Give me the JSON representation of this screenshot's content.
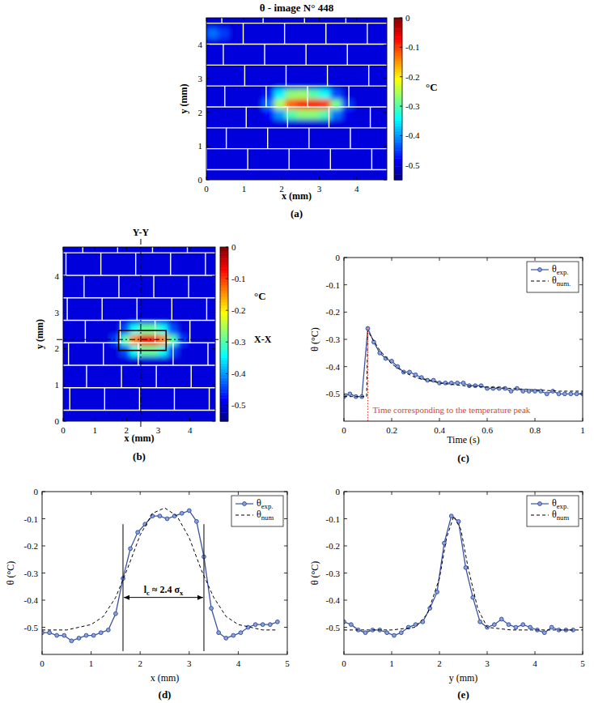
{
  "chart_data": [
    {
      "type": "heatmap",
      "panel": "(a)",
      "title": "θ - image N° 448",
      "x_label": "x (mm)",
      "y_label": "y (mm)",
      "xlim": [
        0,
        4.8
      ],
      "ylim": [
        0,
        4.8
      ],
      "xticks": [
        0,
        1,
        2,
        3,
        4
      ],
      "yticks": [
        0,
        1,
        2,
        3,
        4
      ],
      "cells": [
        [
          -0.5,
          -0.5,
          -0.5,
          -0.5,
          -0.5,
          -0.5,
          -0.5,
          -0.5,
          -0.5,
          -0.5,
          -0.5,
          -0.5,
          -0.5,
          -0.5,
          -0.5,
          -0.5
        ],
        [
          -0.5,
          -0.5,
          -0.5,
          -0.5,
          -0.5,
          -0.5,
          -0.5,
          -0.5,
          -0.5,
          -0.5,
          -0.5,
          -0.5,
          -0.5,
          -0.5,
          -0.5,
          -0.5
        ],
        [
          -0.5,
          -0.5,
          -0.5,
          -0.5,
          -0.5,
          -0.5,
          -0.5,
          -0.5,
          -0.5,
          -0.5,
          -0.5,
          -0.5,
          -0.5,
          -0.5,
          -0.5,
          -0.5
        ],
        [
          -0.5,
          -0.5,
          -0.5,
          -0.5,
          -0.5,
          -0.5,
          -0.5,
          -0.5,
          -0.5,
          -0.5,
          -0.5,
          -0.5,
          -0.5,
          -0.5,
          -0.5,
          -0.5
        ],
        [
          -0.5,
          -0.5,
          -0.5,
          -0.5,
          -0.5,
          -0.5,
          -0.5,
          -0.5,
          -0.5,
          -0.5,
          -0.5,
          -0.5,
          -0.5,
          -0.5,
          -0.5,
          -0.5
        ],
        [
          -0.5,
          -0.5,
          -0.5,
          -0.5,
          -0.5,
          -0.5,
          -0.5,
          -0.5,
          -0.5,
          -0.5,
          -0.5,
          -0.5,
          -0.5,
          -0.5,
          -0.5,
          -0.5
        ],
        [
          -0.5,
          -0.5,
          -0.5,
          -0.5,
          -0.5,
          -0.48,
          -0.4,
          -0.3,
          -0.27,
          -0.27,
          -0.3,
          -0.42,
          -0.49,
          -0.5,
          -0.5,
          -0.5
        ],
        [
          -0.5,
          -0.5,
          -0.5,
          -0.5,
          -0.5,
          -0.42,
          -0.25,
          -0.12,
          -0.08,
          -0.07,
          -0.09,
          -0.28,
          -0.45,
          -0.5,
          -0.5,
          -0.5
        ],
        [
          -0.5,
          -0.5,
          -0.5,
          -0.5,
          -0.5,
          -0.47,
          -0.35,
          -0.27,
          -0.26,
          -0.3,
          -0.34,
          -0.44,
          -0.5,
          -0.5,
          -0.5,
          -0.5
        ],
        [
          -0.5,
          -0.5,
          -0.5,
          -0.5,
          -0.5,
          -0.5,
          -0.5,
          -0.5,
          -0.5,
          -0.5,
          -0.5,
          -0.5,
          -0.5,
          -0.5,
          -0.5,
          -0.5
        ],
        [
          -0.5,
          -0.5,
          -0.5,
          -0.5,
          -0.5,
          -0.5,
          -0.5,
          -0.5,
          -0.5,
          -0.5,
          -0.5,
          -0.5,
          -0.5,
          -0.5,
          -0.5,
          -0.5
        ],
        [
          -0.5,
          -0.5,
          -0.5,
          -0.5,
          -0.5,
          -0.5,
          -0.5,
          -0.5,
          -0.5,
          -0.5,
          -0.5,
          -0.5,
          -0.5,
          -0.5,
          -0.5,
          -0.5
        ],
        [
          -0.5,
          -0.5,
          -0.5,
          -0.5,
          -0.5,
          -0.5,
          -0.5,
          -0.5,
          -0.5,
          -0.5,
          -0.5,
          -0.5,
          -0.5,
          -0.5,
          -0.5,
          -0.5
        ],
        [
          -0.5,
          -0.5,
          -0.5,
          -0.5,
          -0.5,
          -0.5,
          -0.5,
          -0.5,
          -0.5,
          -0.5,
          -0.5,
          -0.5,
          -0.5,
          -0.5,
          -0.5,
          -0.5
        ],
        [
          -0.42,
          -0.45,
          -0.5,
          -0.5,
          -0.5,
          -0.5,
          -0.5,
          -0.5,
          -0.5,
          -0.5,
          -0.5,
          -0.5,
          -0.5,
          -0.5,
          -0.5,
          -0.5
        ],
        [
          -0.5,
          -0.5,
          -0.5,
          -0.5,
          -0.5,
          -0.5,
          -0.5,
          -0.5,
          -0.5,
          -0.5,
          -0.5,
          -0.5,
          -0.5,
          -0.5,
          -0.5,
          -0.5
        ]
      ],
      "colorbar": {
        "range": [
          -0.55,
          0
        ],
        "ticks": [
          0,
          -0.1,
          -0.2,
          -0.3,
          -0.4,
          -0.5
        ],
        "label": "°C"
      }
    },
    {
      "type": "heatmap",
      "panel": "(b)",
      "x_label": "x (mm)",
      "y_label": "y (mm)",
      "xlim": [
        0,
        4.8
      ],
      "ylim": [
        0,
        4.8
      ],
      "xticks": [
        0,
        1,
        2,
        3,
        4
      ],
      "yticks": [
        0,
        1,
        2,
        3,
        4
      ],
      "cells": [
        [
          -0.5,
          -0.5,
          -0.5,
          -0.5,
          -0.5,
          -0.5,
          -0.5,
          -0.5,
          -0.5,
          -0.5,
          -0.5,
          -0.5,
          -0.5,
          -0.5,
          -0.5,
          -0.5
        ],
        [
          -0.5,
          -0.5,
          -0.5,
          -0.5,
          -0.5,
          -0.5,
          -0.5,
          -0.5,
          -0.5,
          -0.5,
          -0.5,
          -0.5,
          -0.5,
          -0.5,
          -0.5,
          -0.5
        ],
        [
          -0.5,
          -0.5,
          -0.5,
          -0.5,
          -0.5,
          -0.5,
          -0.5,
          -0.5,
          -0.5,
          -0.5,
          -0.5,
          -0.5,
          -0.5,
          -0.5,
          -0.5,
          -0.5
        ],
        [
          -0.5,
          -0.5,
          -0.5,
          -0.5,
          -0.5,
          -0.5,
          -0.5,
          -0.5,
          -0.5,
          -0.5,
          -0.5,
          -0.5,
          -0.5,
          -0.5,
          -0.5,
          -0.5
        ],
        [
          -0.5,
          -0.5,
          -0.5,
          -0.5,
          -0.5,
          -0.5,
          -0.5,
          -0.5,
          -0.5,
          -0.5,
          -0.5,
          -0.5,
          -0.5,
          -0.5,
          -0.5,
          -0.5
        ],
        [
          -0.5,
          -0.5,
          -0.5,
          -0.5,
          -0.5,
          -0.5,
          -0.5,
          -0.5,
          -0.5,
          -0.5,
          -0.5,
          -0.5,
          -0.5,
          -0.5,
          -0.5,
          -0.5
        ],
        [
          -0.5,
          -0.5,
          -0.5,
          -0.5,
          -0.5,
          -0.5,
          -0.44,
          -0.34,
          -0.29,
          -0.29,
          -0.34,
          -0.44,
          -0.5,
          -0.5,
          -0.5,
          -0.5
        ],
        [
          -0.5,
          -0.5,
          -0.5,
          -0.5,
          -0.5,
          -0.45,
          -0.3,
          -0.14,
          -0.06,
          -0.06,
          -0.14,
          -0.3,
          -0.45,
          -0.5,
          -0.5,
          -0.5
        ],
        [
          -0.5,
          -0.5,
          -0.5,
          -0.5,
          -0.5,
          -0.5,
          -0.44,
          -0.34,
          -0.29,
          -0.29,
          -0.34,
          -0.44,
          -0.5,
          -0.5,
          -0.5,
          -0.5
        ],
        [
          -0.5,
          -0.5,
          -0.5,
          -0.5,
          -0.5,
          -0.5,
          -0.5,
          -0.5,
          -0.5,
          -0.5,
          -0.5,
          -0.5,
          -0.5,
          -0.5,
          -0.5,
          -0.5
        ],
        [
          -0.5,
          -0.5,
          -0.5,
          -0.5,
          -0.5,
          -0.5,
          -0.5,
          -0.5,
          -0.5,
          -0.5,
          -0.5,
          -0.5,
          -0.5,
          -0.5,
          -0.5,
          -0.5
        ],
        [
          -0.5,
          -0.5,
          -0.5,
          -0.5,
          -0.5,
          -0.5,
          -0.5,
          -0.5,
          -0.5,
          -0.5,
          -0.5,
          -0.5,
          -0.5,
          -0.5,
          -0.5,
          -0.5
        ],
        [
          -0.5,
          -0.5,
          -0.5,
          -0.5,
          -0.5,
          -0.5,
          -0.5,
          -0.5,
          -0.5,
          -0.5,
          -0.5,
          -0.5,
          -0.5,
          -0.5,
          -0.5,
          -0.5
        ],
        [
          -0.5,
          -0.5,
          -0.5,
          -0.5,
          -0.5,
          -0.5,
          -0.5,
          -0.5,
          -0.5,
          -0.5,
          -0.5,
          -0.5,
          -0.5,
          -0.5,
          -0.5,
          -0.5
        ],
        [
          -0.5,
          -0.5,
          -0.5,
          -0.5,
          -0.5,
          -0.5,
          -0.5,
          -0.5,
          -0.5,
          -0.5,
          -0.5,
          -0.5,
          -0.5,
          -0.5,
          -0.5,
          -0.5
        ],
        [
          -0.5,
          -0.5,
          -0.5,
          -0.5,
          -0.5,
          -0.5,
          -0.5,
          -0.5,
          -0.5,
          -0.5,
          -0.5,
          -0.5,
          -0.5,
          -0.5,
          -0.5,
          -0.5
        ]
      ],
      "colorbar": {
        "range": [
          -0.55,
          0
        ],
        "ticks": [
          0,
          -0.1,
          -0.2,
          -0.3,
          -0.4,
          -0.5
        ],
        "label": "°C"
      },
      "sections": [
        {
          "label": "Y-Y",
          "x": 2.45
        },
        {
          "label": "X-X",
          "y": 2.25
        }
      ],
      "box": {
        "x": [
          1.75,
          3.25
        ],
        "y": [
          1.95,
          2.5
        ]
      }
    },
    {
      "type": "line",
      "panel": "(c)",
      "x_label": "Time (s)",
      "y_label": "θ (°C)",
      "xlim": [
        0,
        1
      ],
      "ylim": [
        -0.6,
        0
      ],
      "xticks": [
        0,
        0.2,
        0.4,
        0.6,
        0.8,
        1
      ],
      "yticks": [
        0,
        -0.1,
        -0.2,
        -0.3,
        -0.4,
        -0.5
      ],
      "legend": "upper right",
      "series": [
        {
          "name": "θexp.",
          "color": "#3a53a4",
          "marker": "circle",
          "line_style": "solid",
          "x": [
            0,
            0.025,
            0.05,
            0.075,
            0.1,
            0.125,
            0.15,
            0.175,
            0.2,
            0.225,
            0.25,
            0.275,
            0.3,
            0.325,
            0.35,
            0.375,
            0.4,
            0.425,
            0.45,
            0.475,
            0.5,
            0.525,
            0.55,
            0.575,
            0.6,
            0.625,
            0.65,
            0.675,
            0.7,
            0.725,
            0.75,
            0.775,
            0.8,
            0.825,
            0.85,
            0.875,
            0.9,
            0.925,
            0.95,
            0.975,
            1
          ],
          "values": [
            -0.51,
            -0.5,
            -0.51,
            -0.51,
            -0.26,
            -0.31,
            -0.35,
            -0.37,
            -0.38,
            -0.4,
            -0.42,
            -0.42,
            -0.43,
            -0.44,
            -0.45,
            -0.45,
            -0.46,
            -0.46,
            -0.46,
            -0.46,
            -0.46,
            -0.47,
            -0.47,
            -0.47,
            -0.48,
            -0.48,
            -0.48,
            -0.48,
            -0.49,
            -0.48,
            -0.49,
            -0.49,
            -0.49,
            -0.49,
            -0.5,
            -0.49,
            -0.5,
            -0.5,
            -0.5,
            -0.5,
            -0.5
          ]
        },
        {
          "name": "θnum.",
          "color": "#000000",
          "marker": "none",
          "line_style": "dashed",
          "x": [
            0,
            0.095,
            0.1,
            0.15,
            0.2,
            0.25,
            0.3,
            0.4,
            0.5,
            0.6,
            0.7,
            0.8,
            0.9,
            1
          ],
          "values": [
            -0.51,
            -0.51,
            -0.27,
            -0.34,
            -0.39,
            -0.42,
            -0.44,
            -0.46,
            -0.47,
            -0.475,
            -0.48,
            -0.485,
            -0.49,
            -0.49
          ]
        }
      ],
      "annotations": [
        {
          "text": "Time corresponding to the temperature peak",
          "x": 0.1,
          "color": "#e8412c"
        }
      ]
    },
    {
      "type": "line",
      "panel": "(d)",
      "x_label": "x (mm)",
      "y_label": "θ (°C)",
      "xlim": [
        0,
        5
      ],
      "ylim": [
        -0.6,
        0
      ],
      "xticks": [
        0,
        1,
        2,
        3,
        4,
        5
      ],
      "yticks": [
        0,
        -0.1,
        -0.2,
        -0.3,
        -0.4,
        -0.5
      ],
      "legend": "upper right",
      "series": [
        {
          "name": "θexp.",
          "color": "#3a53a4",
          "marker": "circle",
          "line_style": "solid",
          "x": [
            0,
            0.15,
            0.3,
            0.45,
            0.6,
            0.75,
            0.9,
            1.05,
            1.2,
            1.35,
            1.5,
            1.65,
            1.8,
            1.95,
            2.1,
            2.25,
            2.4,
            2.55,
            2.7,
            2.85,
            3,
            3.15,
            3.3,
            3.45,
            3.6,
            3.75,
            3.9,
            4.05,
            4.2,
            4.35,
            4.5,
            4.65,
            4.8
          ],
          "values": [
            -0.52,
            -0.52,
            -0.53,
            -0.53,
            -0.55,
            -0.54,
            -0.53,
            -0.53,
            -0.52,
            -0.51,
            -0.45,
            -0.32,
            -0.21,
            -0.15,
            -0.12,
            -0.09,
            -0.09,
            -0.1,
            -0.09,
            -0.08,
            -0.07,
            -0.11,
            -0.24,
            -0.43,
            -0.52,
            -0.54,
            -0.53,
            -0.52,
            -0.5,
            -0.49,
            -0.49,
            -0.49,
            -0.48
          ]
        },
        {
          "name": "θnum",
          "color": "#000000",
          "marker": "none",
          "line_style": "dashed",
          "x": [
            0,
            0.5,
            1,
            1.25,
            1.5,
            1.75,
            2,
            2.25,
            2.5,
            2.75,
            3,
            3.25,
            3.5,
            3.75,
            4,
            4.5,
            4.8
          ],
          "values": [
            -0.51,
            -0.51,
            -0.49,
            -0.46,
            -0.39,
            -0.28,
            -0.16,
            -0.08,
            -0.06,
            -0.09,
            -0.17,
            -0.29,
            -0.39,
            -0.46,
            -0.49,
            -0.51,
            -0.51
          ]
        }
      ],
      "annotations": [
        {
          "text": "lc ≈ 2.4 σx",
          "x": [
            1.65,
            3.3
          ],
          "y": -0.39
        }
      ]
    },
    {
      "type": "line",
      "panel": "(e)",
      "x_label": "y (mm)",
      "y_label": "θ (°C)",
      "xlim": [
        0,
        5
      ],
      "ylim": [
        -0.6,
        0
      ],
      "xticks": [
        0,
        1,
        2,
        3,
        4,
        5
      ],
      "yticks": [
        0,
        -0.1,
        -0.2,
        -0.3,
        -0.4,
        -0.5
      ],
      "legend": "upper right",
      "series": [
        {
          "name": "θexp.",
          "color": "#3a53a4",
          "marker": "circle",
          "line_style": "solid",
          "x": [
            0,
            0.15,
            0.3,
            0.45,
            0.6,
            0.75,
            0.9,
            1.05,
            1.2,
            1.35,
            1.5,
            1.65,
            1.8,
            1.95,
            2.1,
            2.25,
            2.4,
            2.55,
            2.7,
            2.85,
            3,
            3.15,
            3.3,
            3.45,
            3.6,
            3.75,
            3.9,
            4.05,
            4.2,
            4.35,
            4.5,
            4.65,
            4.8
          ],
          "values": [
            -0.48,
            -0.49,
            -0.51,
            -0.52,
            -0.51,
            -0.51,
            -0.52,
            -0.53,
            -0.52,
            -0.5,
            -0.49,
            -0.48,
            -0.43,
            -0.37,
            -0.19,
            -0.09,
            -0.11,
            -0.28,
            -0.39,
            -0.48,
            -0.5,
            -0.49,
            -0.47,
            -0.49,
            -0.5,
            -0.49,
            -0.5,
            -0.51,
            -0.52,
            -0.5,
            -0.51,
            -0.51,
            -0.51
          ]
        },
        {
          "name": "θnum",
          "color": "#000000",
          "marker": "none",
          "line_style": "dashed",
          "x": [
            0,
            1,
            1.5,
            1.75,
            2,
            2.15,
            2.3,
            2.45,
            2.6,
            2.8,
            3,
            3.5,
            5
          ],
          "values": [
            -0.51,
            -0.51,
            -0.5,
            -0.45,
            -0.32,
            -0.17,
            -0.09,
            -0.14,
            -0.28,
            -0.43,
            -0.5,
            -0.51,
            -0.51
          ]
        }
      ]
    }
  ]
}
